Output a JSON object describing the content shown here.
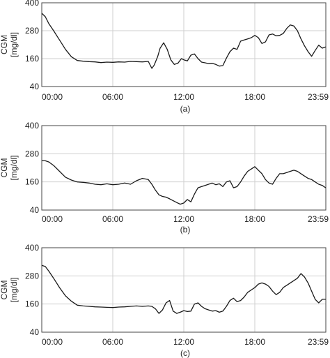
{
  "chart_data": [
    {
      "type": "line",
      "caption": "(a)",
      "ylabel": [
        "CGM",
        "[mg/dl]"
      ],
      "x_tick_labels": [
        "00:00",
        "06:00",
        "12:00",
        "18:00",
        "23:59"
      ],
      "y_tick_labels": [
        "40",
        "160",
        "280",
        "400"
      ],
      "xlim_hours": [
        0,
        24
      ],
      "ylim": [
        40,
        400
      ],
      "grid": true,
      "x_hours": [
        0,
        0.3,
        0.6,
        1.0,
        1.5,
        2.0,
        2.5,
        3.0,
        3.5,
        4.0,
        4.5,
        5.0,
        5.5,
        6.0,
        6.5,
        7.0,
        7.5,
        8.0,
        8.5,
        9.0,
        9.3,
        9.5,
        9.8,
        10.0,
        10.3,
        10.6,
        10.9,
        11.2,
        11.5,
        11.8,
        12.0,
        12.3,
        12.6,
        12.9,
        13.2,
        13.5,
        13.8,
        14.1,
        14.4,
        14.7,
        15.0,
        15.3,
        15.6,
        15.9,
        16.2,
        16.5,
        16.8,
        17.1,
        17.4,
        17.7,
        18.0,
        18.3,
        18.6,
        18.9,
        19.2,
        19.5,
        19.8,
        20.1,
        20.4,
        20.7,
        21.0,
        21.3,
        21.6,
        21.9,
        22.2,
        22.5,
        22.8,
        23.1,
        23.4,
        23.7,
        23.99
      ],
      "values": [
        355,
        340,
        310,
        280,
        240,
        200,
        168,
        152,
        149,
        147,
        146,
        143,
        145,
        144,
        146,
        145,
        148,
        147,
        146,
        148,
        118,
        132,
        170,
        205,
        228,
        200,
        155,
        135,
        140,
        160,
        155,
        150,
        175,
        180,
        160,
        145,
        142,
        138,
        140,
        135,
        128,
        130,
        162,
        190,
        205,
        200,
        235,
        240,
        245,
        250,
        260,
        250,
        225,
        232,
        262,
        266,
        258,
        260,
        268,
        290,
        305,
        300,
        280,
        245,
        215,
        190,
        170,
        195,
        218,
        205,
        210
      ]
    },
    {
      "type": "line",
      "caption": "(b)",
      "ylabel": [
        "CGM",
        "[mg/dl]"
      ],
      "x_tick_labels": [
        "00:00",
        "06:00",
        "12:00",
        "18:00",
        "23:59"
      ],
      "y_tick_labels": [
        "40",
        "160",
        "280",
        "400"
      ],
      "xlim_hours": [
        0,
        24
      ],
      "ylim": [
        40,
        400
      ],
      "grid": true,
      "x_hours": [
        0,
        0.3,
        0.6,
        1.0,
        1.5,
        2.0,
        2.5,
        3.0,
        3.5,
        4.0,
        4.5,
        5.0,
        5.5,
        6.0,
        6.5,
        7.0,
        7.5,
        8.0,
        8.5,
        9.0,
        9.3,
        9.6,
        9.9,
        10.2,
        10.5,
        10.8,
        11.1,
        11.4,
        11.7,
        12.0,
        12.3,
        12.6,
        12.9,
        13.2,
        13.5,
        13.8,
        14.1,
        14.4,
        14.7,
        15.0,
        15.3,
        15.6,
        15.9,
        16.2,
        16.5,
        16.8,
        17.1,
        17.4,
        17.7,
        18.0,
        18.3,
        18.6,
        18.9,
        19.2,
        19.5,
        19.8,
        20.1,
        20.4,
        20.7,
        21.0,
        21.3,
        21.6,
        21.9,
        22.2,
        22.5,
        22.8,
        23.1,
        23.4,
        23.7,
        23.99
      ],
      "values": [
        250,
        250,
        245,
        230,
        205,
        180,
        168,
        160,
        158,
        155,
        150,
        148,
        152,
        148,
        150,
        155,
        150,
        165,
        175,
        170,
        150,
        125,
        105,
        98,
        95,
        88,
        80,
        72,
        65,
        70,
        85,
        75,
        108,
        135,
        140,
        145,
        150,
        155,
        148,
        152,
        140,
        160,
        165,
        135,
        140,
        160,
        185,
        205,
        215,
        225,
        210,
        195,
        170,
        155,
        150,
        175,
        195,
        195,
        200,
        205,
        210,
        205,
        195,
        185,
        175,
        170,
        160,
        150,
        145,
        135
      ]
    },
    {
      "type": "line",
      "caption": "(c)",
      "ylabel": [
        "CGM",
        "[mg/dl]"
      ],
      "x_tick_labels": [
        "00:00",
        "06:00",
        "12:00",
        "18:00",
        "23:59"
      ],
      "y_tick_labels": [
        "40",
        "160",
        "280",
        "400"
      ],
      "xlim_hours": [
        0,
        24
      ],
      "ylim": [
        40,
        400
      ],
      "grid": true,
      "x_hours": [
        0,
        0.3,
        0.6,
        1.0,
        1.5,
        2.0,
        2.5,
        3.0,
        3.5,
        4.0,
        4.5,
        5.0,
        5.5,
        6.0,
        6.5,
        7.0,
        7.5,
        8.0,
        8.5,
        9.0,
        9.3,
        9.6,
        9.9,
        10.2,
        10.5,
        10.8,
        11.1,
        11.4,
        11.7,
        12.0,
        12.3,
        12.6,
        12.9,
        13.2,
        13.5,
        13.8,
        14.1,
        14.4,
        14.7,
        15.0,
        15.3,
        15.6,
        15.9,
        16.2,
        16.5,
        16.8,
        17.1,
        17.4,
        17.7,
        18.0,
        18.3,
        18.6,
        18.9,
        19.2,
        19.5,
        19.8,
        20.1,
        20.4,
        20.7,
        21.0,
        21.3,
        21.6,
        21.9,
        22.2,
        22.5,
        22.8,
        23.1,
        23.4,
        23.7,
        23.99
      ],
      "values": [
        325,
        320,
        300,
        270,
        230,
        195,
        172,
        155,
        152,
        150,
        148,
        147,
        146,
        145,
        147,
        148,
        150,
        152,
        150,
        152,
        150,
        140,
        120,
        135,
        165,
        175,
        130,
        120,
        125,
        132,
        128,
        130,
        160,
        165,
        150,
        140,
        135,
        130,
        132,
        125,
        130,
        150,
        175,
        185,
        170,
        175,
        190,
        210,
        220,
        230,
        245,
        250,
        245,
        235,
        215,
        200,
        210,
        230,
        240,
        250,
        260,
        270,
        290,
        275,
        250,
        215,
        180,
        165,
        180,
        180
      ]
    }
  ]
}
